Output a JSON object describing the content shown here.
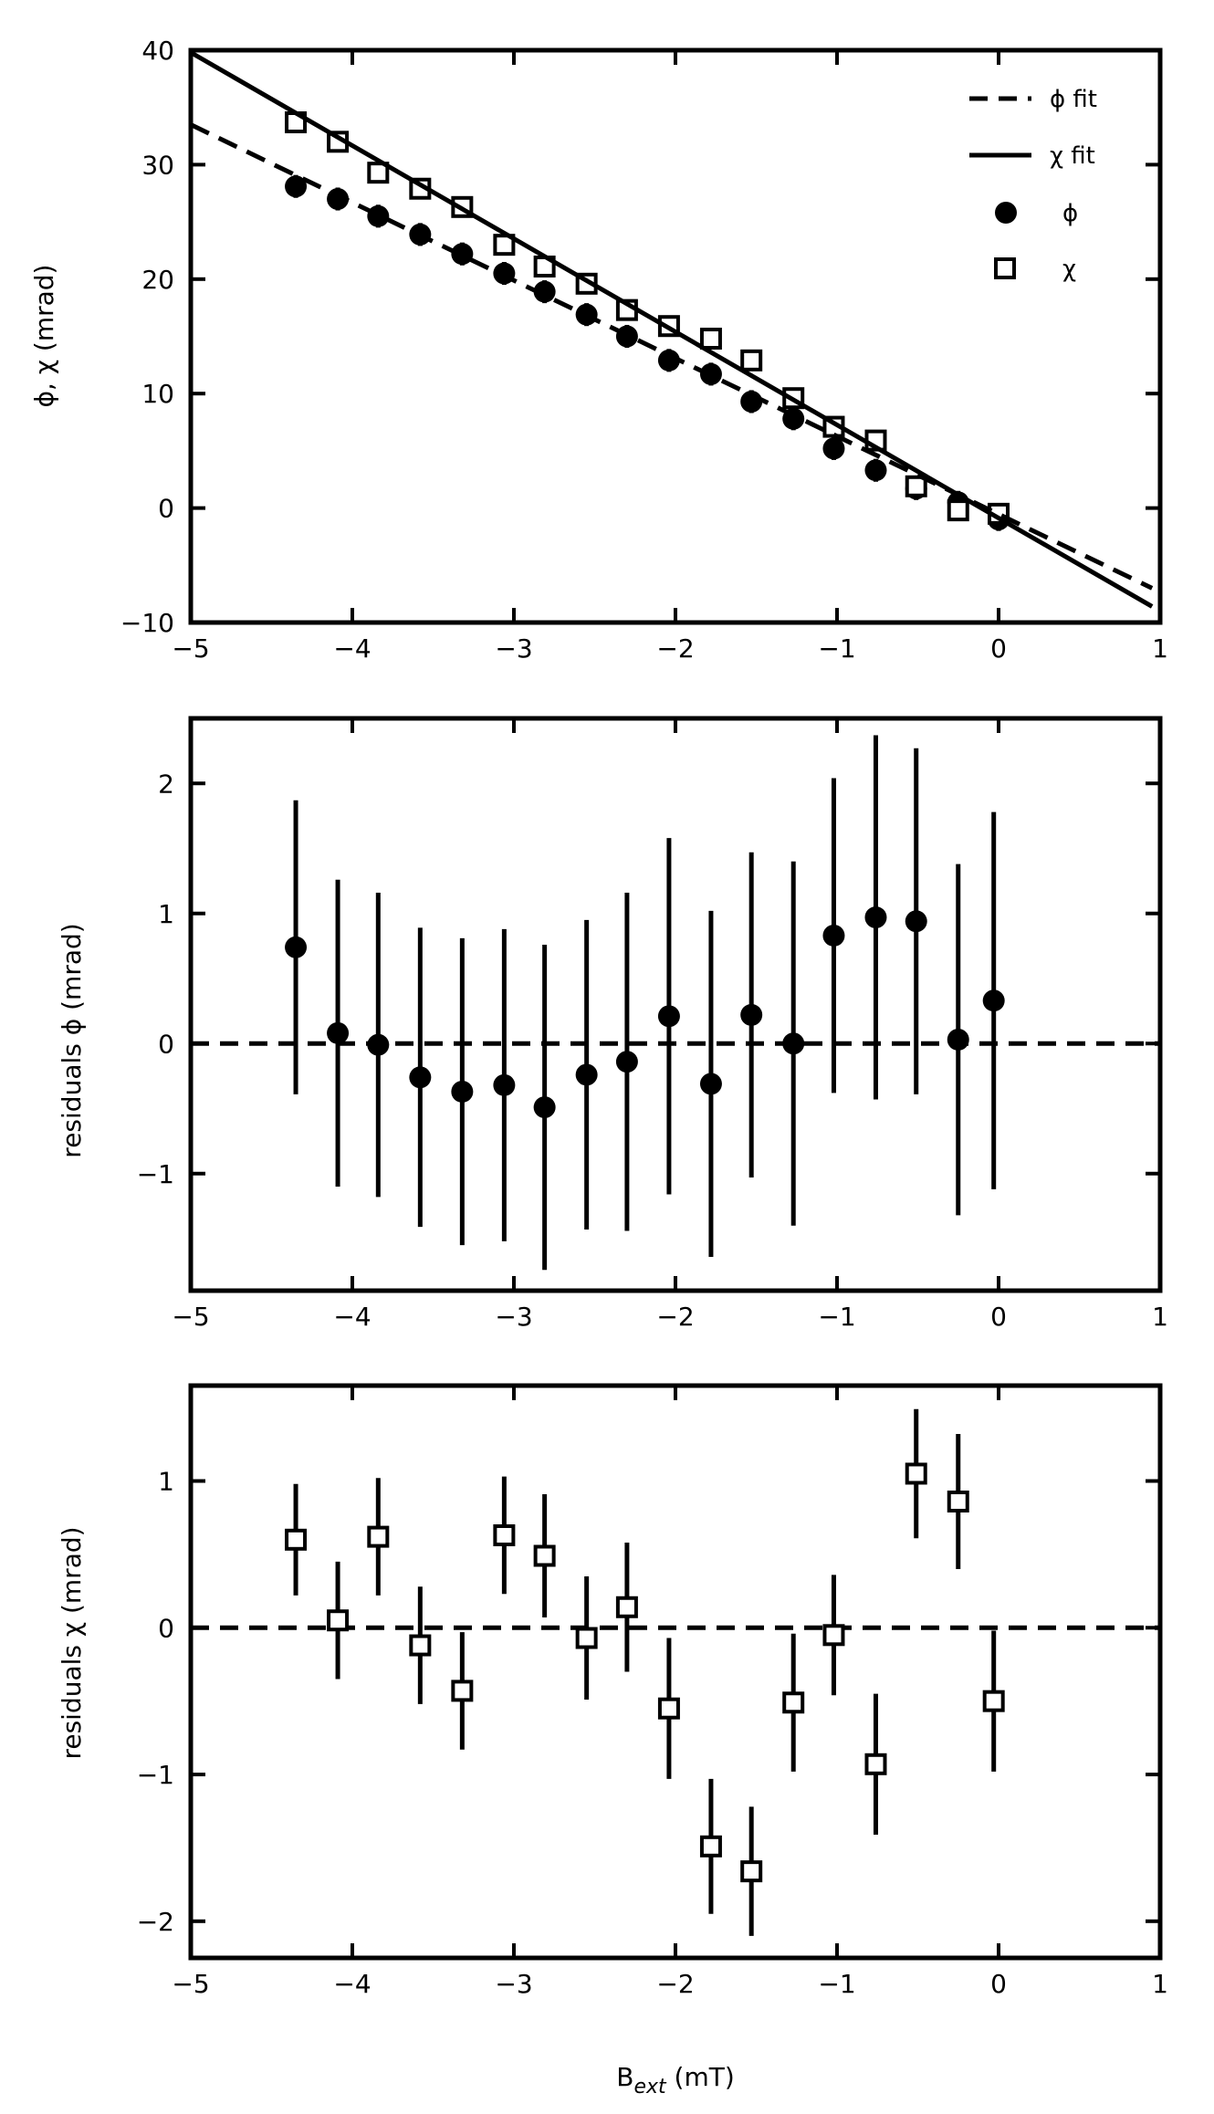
{
  "chart_data": [
    {
      "type": "scatter",
      "panel": "top",
      "title": "",
      "xlabel": "",
      "ylabel": "ϕ, χ (mrad)",
      "xlim": [
        -5,
        1
      ],
      "ylim": [
        -10,
        40
      ],
      "xticks": [
        -5,
        -4,
        -3,
        -2,
        -1,
        0,
        1
      ],
      "yticks": [
        -10,
        0,
        10,
        20,
        30,
        40
      ],
      "xtick_labels": [
        "−5",
        "−4",
        "−3",
        "−2",
        "−1",
        "0",
        "1"
      ],
      "ytick_labels": [
        "−10",
        "0",
        "10",
        "20",
        "30",
        "40"
      ],
      "grid": false,
      "legend_position": "top-right",
      "legend": [
        {
          "label": "ϕ fit",
          "style": "dashed-line"
        },
        {
          "label": "χ fit",
          "style": "solid-line"
        },
        {
          "label": "ϕ",
          "style": "filled-circle"
        },
        {
          "label": "χ",
          "style": "open-square"
        }
      ],
      "x": [
        -4.35,
        -4.09,
        -3.84,
        -3.58,
        -3.32,
        -3.06,
        -2.81,
        -2.55,
        -2.3,
        -2.04,
        -1.78,
        -1.53,
        -1.27,
        -1.02,
        -0.76,
        -0.51,
        -0.25,
        0.0
      ],
      "series": [
        {
          "name": "ϕ",
          "marker": "filled-circle",
          "values": [
            28.1,
            27.0,
            25.5,
            23.9,
            22.2,
            20.5,
            18.9,
            16.9,
            15.0,
            12.9,
            11.7,
            9.3,
            7.8,
            5.2,
            3.3,
            1.7,
            0.5,
            -1.0
          ],
          "errors": [
            1.0,
            1.0,
            1.0,
            1.0,
            1.0,
            1.0,
            1.0,
            1.0,
            1.0,
            1.0,
            1.0,
            1.0,
            1.0,
            1.0,
            1.0,
            1.0,
            1.0,
            1.0
          ]
        },
        {
          "name": "χ",
          "marker": "open-square",
          "values": [
            33.7,
            32.0,
            29.3,
            27.9,
            26.3,
            23.0,
            21.1,
            19.6,
            17.3,
            15.9,
            14.8,
            12.9,
            9.6,
            7.1,
            5.9,
            1.9,
            -0.2,
            -0.5
          ],
          "errors": [
            0.4,
            0.4,
            0.4,
            0.4,
            0.4,
            0.4,
            0.4,
            0.4,
            0.4,
            0.4,
            0.4,
            0.4,
            0.4,
            0.4,
            0.4,
            0.4,
            0.4,
            0.4
          ]
        },
        {
          "name": "ϕ fit",
          "line": "dashed",
          "x_line": [
            -5,
            0.95
          ],
          "values_line": [
            33.5,
            -7.0
          ]
        },
        {
          "name": "χ fit",
          "line": "solid",
          "x_line": [
            -5,
            0.95
          ],
          "values_line": [
            39.8,
            -8.6
          ]
        }
      ]
    },
    {
      "type": "scatter",
      "panel": "middle",
      "title": "",
      "xlabel": "",
      "ylabel": "residuals ϕ (mrad)",
      "xlim": [
        -5,
        1
      ],
      "ylim": [
        -1.9,
        2.5
      ],
      "xticks": [
        -5,
        -4,
        -3,
        -2,
        -1,
        0,
        1
      ],
      "yticks": [
        -1,
        0,
        1,
        2
      ],
      "xtick_labels": [
        "−5",
        "−4",
        "−3",
        "−2",
        "−1",
        "0",
        "1"
      ],
      "ytick_labels": [
        "−1",
        "0",
        "1",
        "2"
      ],
      "grid": false,
      "reference_line": 0,
      "x": [
        -4.35,
        -4.09,
        -3.84,
        -3.58,
        -3.32,
        -3.06,
        -2.81,
        -2.55,
        -2.3,
        -2.04,
        -1.78,
        -1.53,
        -1.27,
        -1.02,
        -0.76,
        -0.51,
        -0.25,
        -0.03
      ],
      "series": [
        {
          "name": "ϕ",
          "marker": "filled-circle",
          "values": [
            0.74,
            0.08,
            -0.01,
            -0.26,
            -0.37,
            -0.32,
            -0.49,
            -0.24,
            -0.14,
            0.21,
            -0.31,
            0.22,
            0.0,
            0.83,
            0.97,
            0.94,
            0.03,
            0.33
          ],
          "errors": [
            1.13,
            1.18,
            1.17,
            1.15,
            1.18,
            1.2,
            1.25,
            1.19,
            1.3,
            1.37,
            1.33,
            1.25,
            1.4,
            1.21,
            1.4,
            1.33,
            1.35,
            1.45
          ]
        }
      ]
    },
    {
      "type": "scatter",
      "panel": "bottom",
      "title": "",
      "xlabel": "B_ext (mT)",
      "ylabel": "residuals χ (mrad)",
      "xlim": [
        -5,
        1
      ],
      "ylim": [
        -2.25,
        1.65
      ],
      "xticks": [
        -5,
        -4,
        -3,
        -2,
        -1,
        0,
        1
      ],
      "yticks": [
        -2,
        -1,
        0,
        1
      ],
      "xtick_labels": [
        "−5",
        "−4",
        "−3",
        "−2",
        "−1",
        "0",
        "1"
      ],
      "ytick_labels": [
        "−2",
        "−1",
        "0",
        "1"
      ],
      "grid": false,
      "reference_line": 0,
      "x": [
        -4.35,
        -4.09,
        -3.84,
        -3.58,
        -3.32,
        -3.06,
        -2.81,
        -2.55,
        -2.3,
        -2.04,
        -1.78,
        -1.53,
        -1.27,
        -1.02,
        -0.76,
        -0.51,
        -0.25,
        -0.03
      ],
      "series": [
        {
          "name": "χ",
          "marker": "open-square",
          "values": [
            0.6,
            0.05,
            0.62,
            -0.12,
            -0.43,
            0.63,
            0.49,
            -0.07,
            0.14,
            -0.55,
            -1.49,
            -1.66,
            -0.51,
            -0.05,
            -0.93,
            1.05,
            0.86,
            -0.5
          ],
          "errors": [
            0.38,
            0.4,
            0.4,
            0.4,
            0.4,
            0.4,
            0.42,
            0.42,
            0.44,
            0.48,
            0.46,
            0.44,
            0.47,
            0.41,
            0.48,
            0.44,
            0.46,
            0.48
          ]
        }
      ]
    }
  ],
  "labels": {
    "panel1_ylabel": "ϕ, χ (mrad)",
    "panel2_ylabel": "residuals ϕ (mrad)",
    "panel3_ylabel": "residuals χ (mrad)",
    "xlabel_main": "B",
    "xlabel_sub": "ext",
    "xlabel_unit": " (mT)"
  }
}
